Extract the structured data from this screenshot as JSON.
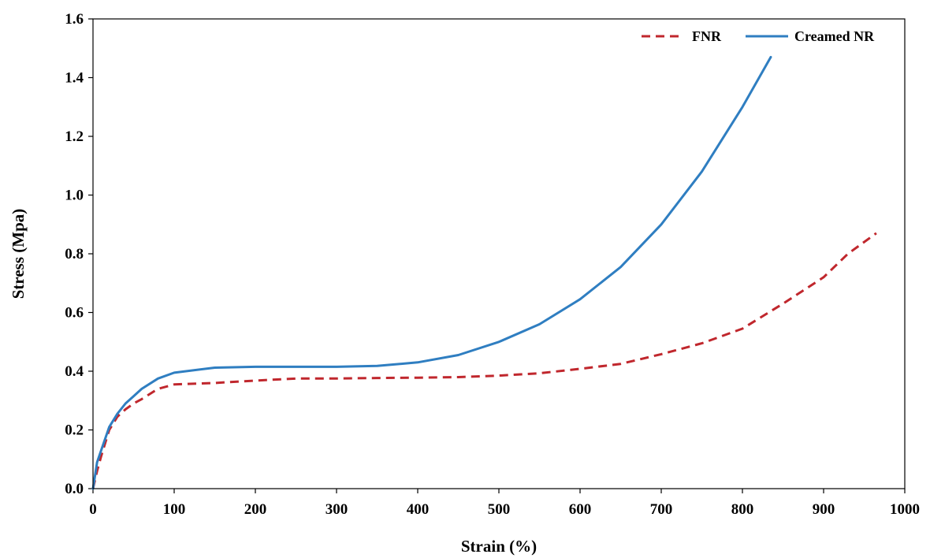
{
  "chart_data": {
    "type": "line",
    "title": "",
    "xlabel": "Strain (%)",
    "ylabel": "Stress (Mpa)",
    "xlim": [
      0,
      1000
    ],
    "ylim": [
      0,
      1.6
    ],
    "x_ticks": [
      "0",
      "100",
      "200",
      "300",
      "400",
      "500",
      "600",
      "700",
      "800",
      "900",
      "1000"
    ],
    "y_ticks": [
      "0.0",
      "0.2",
      "0.4",
      "0.6",
      "0.8",
      "1.0",
      "1.2",
      "1.4",
      "1.6"
    ],
    "grid": false,
    "legend_position": "top-right",
    "series": [
      {
        "name": "FNR",
        "color": "#c0272d",
        "style": "dashed",
        "x": [
          0,
          5,
          10,
          20,
          30,
          40,
          50,
          60,
          80,
          100,
          150,
          200,
          250,
          300,
          350,
          400,
          450,
          500,
          550,
          600,
          650,
          700,
          750,
          800,
          850,
          900,
          930,
          965
        ],
        "y": [
          0.0,
          0.06,
          0.11,
          0.2,
          0.245,
          0.27,
          0.29,
          0.305,
          0.34,
          0.355,
          0.36,
          0.368,
          0.375,
          0.375,
          0.377,
          0.378,
          0.38,
          0.385,
          0.393,
          0.408,
          0.425,
          0.458,
          0.495,
          0.545,
          0.63,
          0.72,
          0.8,
          0.87
        ]
      },
      {
        "name": "Creamed NR",
        "color": "#2f7ec1",
        "style": "solid",
        "x": [
          0,
          5,
          10,
          20,
          30,
          40,
          50,
          60,
          80,
          100,
          150,
          200,
          250,
          300,
          350,
          400,
          450,
          500,
          550,
          600,
          650,
          700,
          750,
          800,
          835
        ],
        "y": [
          0.0,
          0.09,
          0.13,
          0.21,
          0.255,
          0.29,
          0.315,
          0.34,
          0.375,
          0.395,
          0.412,
          0.415,
          0.415,
          0.415,
          0.418,
          0.43,
          0.455,
          0.5,
          0.56,
          0.645,
          0.755,
          0.9,
          1.08,
          1.3,
          1.47
        ]
      }
    ]
  }
}
